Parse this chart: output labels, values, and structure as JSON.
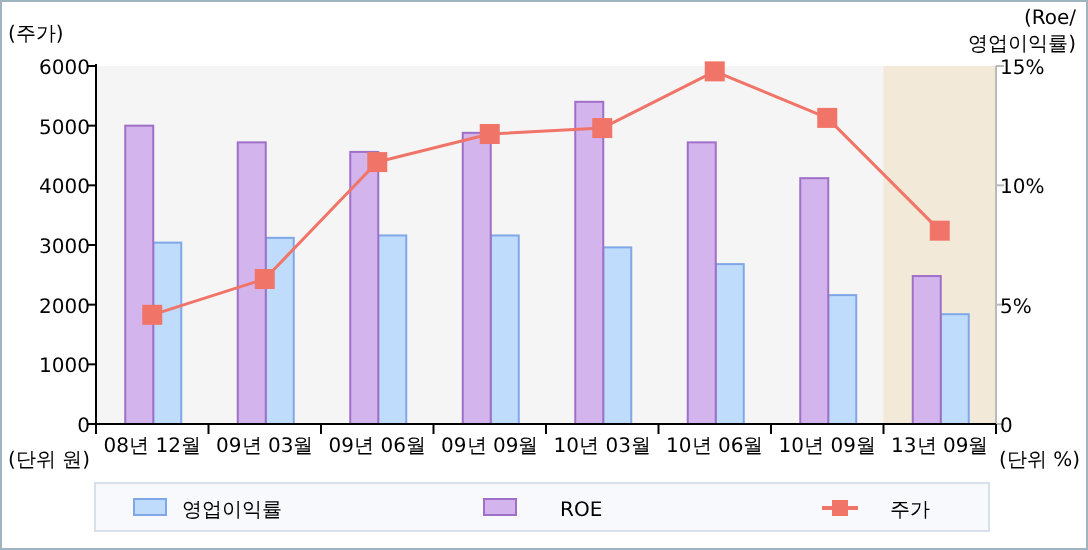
{
  "chart_data": {
    "type": "bar",
    "ylabel": "(주가)",
    "y2label": "(Roe/\n영업이익률)",
    "annotations": [
      "(단위 원)",
      "(단위 %)"
    ],
    "categories": [
      "08년 12월",
      "09년 03월",
      "09년 06월",
      "09년 09월",
      "10년 03월",
      "10년 06월",
      "10년 09월",
      "13년 09월"
    ],
    "series": [
      {
        "name": "영업이익률",
        "axis": "y2",
        "color": "#c0dcfc",
        "values": [
          7.6,
          7.8,
          7.9,
          7.9,
          7.4,
          6.7,
          5.4,
          4.6
        ]
      },
      {
        "name": "ROE",
        "axis": "y2",
        "color": "#d4b4ec",
        "values": [
          12.5,
          11.8,
          11.4,
          12.2,
          13.5,
          11.8,
          10.3,
          6.2
        ]
      },
      {
        "name": "주가",
        "type": "line",
        "color": "#f07468",
        "values": [
          1830,
          2430,
          4390,
          4860,
          4960,
          5910,
          5130,
          3240
        ]
      }
    ],
    "ylim": [
      0,
      6000
    ],
    "yticks": [
      0,
      1000,
      2000,
      3000,
      4000,
      5000,
      6000
    ],
    "y2lim": [
      0,
      15
    ],
    "y2ticks": [
      0,
      {
        "value": 5,
        "label": "5%"
      },
      {
        "value": 10,
        "label": "10%"
      },
      {
        "value": 15,
        "label": "15%"
      }
    ],
    "bands": [
      {
        "axis": "x",
        "from": "13년 09월",
        "to": "13년 09월",
        "color": "#f3e9d8"
      }
    ],
    "marker": "square",
    "legend": "bottom",
    "grid": false
  }
}
